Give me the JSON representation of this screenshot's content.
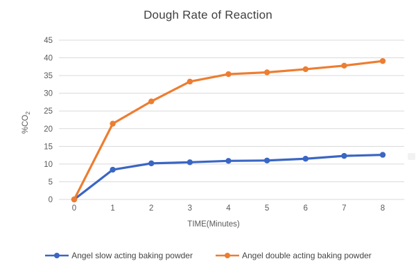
{
  "chart_data": {
    "type": "line",
    "title": "Dough Rate of Reaction",
    "xlabel": "TIME(Minutes)",
    "ylabel": "%CO2",
    "ylabel_main": "%CO",
    "ylabel_sub": "2",
    "categories": [
      "0",
      "1",
      "2",
      "3",
      "4",
      "5",
      "6",
      "7",
      "8"
    ],
    "y_ticks": [
      0,
      5,
      10,
      15,
      20,
      25,
      30,
      35,
      40,
      45
    ],
    "ylim": [
      0,
      45
    ],
    "grid": true,
    "legend_position": "bottom",
    "series": [
      {
        "name": "Angel slow acting baking powder",
        "color": "#3a66c4",
        "marker": "circle",
        "values": [
          0,
          8.4,
          10.2,
          10.5,
          10.9,
          11.0,
          11.5,
          12.3,
          12.6
        ]
      },
      {
        "name": "Angel double acting baking powder",
        "color": "#ed7d31",
        "marker": "circle",
        "values": [
          0,
          21.4,
          27.7,
          33.3,
          35.4,
          35.9,
          36.8,
          37.8,
          39.1
        ]
      }
    ],
    "colors": {
      "gridline": "#d9d9d9",
      "tick_text": "#595959",
      "title_text": "#3f3f3f",
      "legend_text": "#454545",
      "background": "#ffffff"
    }
  }
}
